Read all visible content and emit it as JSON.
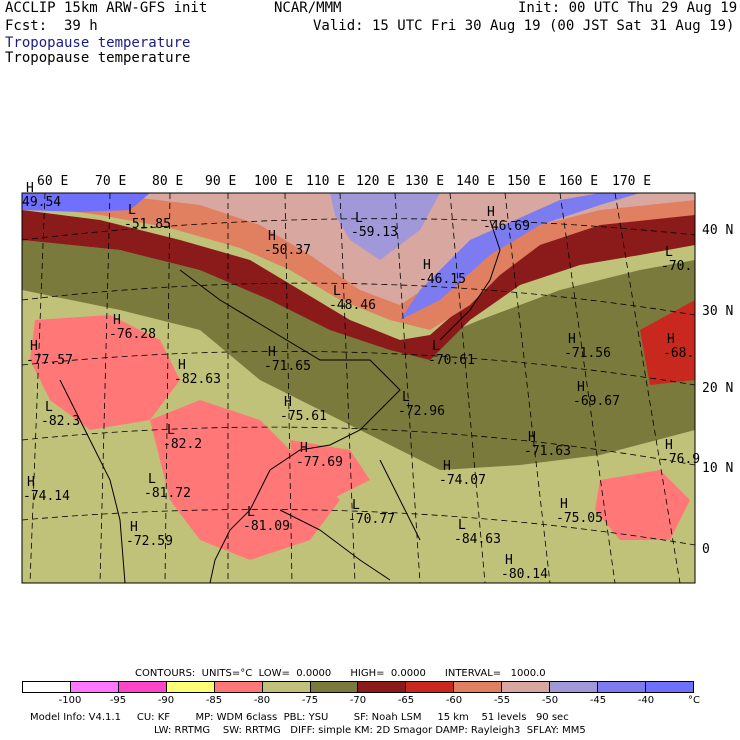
{
  "header": {
    "model": "ACCLIP 15km ARW-GFS init",
    "org": "NCAR/MMM",
    "init": "Init: 00 UTC Thu 29 Aug 19",
    "fcst": "Fcst:  39 h",
    "valid": "Valid: 15 UTC Fri 30 Aug 19 (00 JST Sat 31 Aug 19)",
    "title_blue": "Tropopause temperature",
    "title_black": "Tropopause temperature"
  },
  "map": {
    "lon_labels": [
      "60 E",
      "70 E",
      "80 E",
      "90 E",
      "100 E",
      "110 E",
      "120 E",
      "130 E",
      "140 E",
      "150 E",
      "160 E",
      "170 E"
    ],
    "lat_labels": [
      "40 N",
      "30 N",
      "20 N",
      "10 N",
      "0"
    ],
    "lows": [
      {
        "t": "L",
        "v": "-51.85"
      },
      {
        "t": "H",
        "v": "-50.37"
      },
      {
        "t": "L",
        "v": "-59.13"
      },
      {
        "t": "H",
        "v": "-46.69"
      },
      {
        "t": "H",
        "v": "-46.15"
      },
      {
        "t": "L",
        "v": "-48.46"
      },
      {
        "t": "L",
        "v": "-70."
      },
      {
        "t": "H",
        "v": "-76.28"
      },
      {
        "t": "H",
        "v": "-77.57"
      },
      {
        "t": "H",
        "v": "-82.63"
      },
      {
        "t": "H",
        "v": "-71.65"
      },
      {
        "t": "L",
        "v": "-70.61"
      },
      {
        "t": "H",
        "v": "-71.56"
      },
      {
        "t": "H",
        "v": "-68."
      },
      {
        "t": "L",
        "v": "-82.3"
      },
      {
        "t": "H",
        "v": "-75.61"
      },
      {
        "t": "L",
        "v": "-72.96"
      },
      {
        "t": "H",
        "v": "-69.67"
      },
      {
        "t": "L",
        "v": "-82.2"
      },
      {
        "t": "H",
        "v": "-77.69"
      },
      {
        "t": "H",
        "v": "-71.63"
      },
      {
        "t": "H",
        "v": "-76.9"
      },
      {
        "t": "H",
        "v": "-74.07"
      },
      {
        "t": "H",
        "v": "-74.14"
      },
      {
        "t": "L",
        "v": "-81.72"
      },
      {
        "t": "L",
        "v": "-81.09"
      },
      {
        "t": "L",
        "v": "-70.77"
      },
      {
        "t": "L",
        "v": "-84.63"
      },
      {
        "t": "H",
        "v": "-75.05"
      },
      {
        "t": "H",
        "v": "-72.59"
      },
      {
        "t": "H",
        "v": "-80.14"
      },
      {
        "t": "H",
        "v": "49.54"
      }
    ]
  },
  "contour_info": "CONTOURS:  UNITS=°C  LOW=  0.0000      HIGH=  0.0000      INTERVAL=   1000.0",
  "colorbar": {
    "colors": [
      "#ffffff",
      "#ff77ff",
      "#ff44cc",
      "#ffff77",
      "#ff7777",
      "#c0c27a",
      "#7a7a3c",
      "#8b1a1a",
      "#c8281e",
      "#e08060",
      "#d8a8a0",
      "#a098d8",
      "#7c7cf0",
      "#7070ff"
    ],
    "ticks": [
      "-100",
      "-95",
      "-90",
      "-85",
      "-80",
      "-75",
      "-70",
      "-65",
      "-60",
      "-55",
      "-50",
      "-45",
      "-40",
      "°C"
    ]
  },
  "footer": {
    "line1": "Model Info: V4.1.1     CU: KF        MP: WDM 6class  PBL: YSU        SF: Noah LSM     15 km    51 levels   90 sec",
    "line2": "LW: RRTMG    SW: RRTMG   DIFF: simple KM: 2D Smagor DAMP: Rayleigh3  SFLAY: MM5"
  }
}
